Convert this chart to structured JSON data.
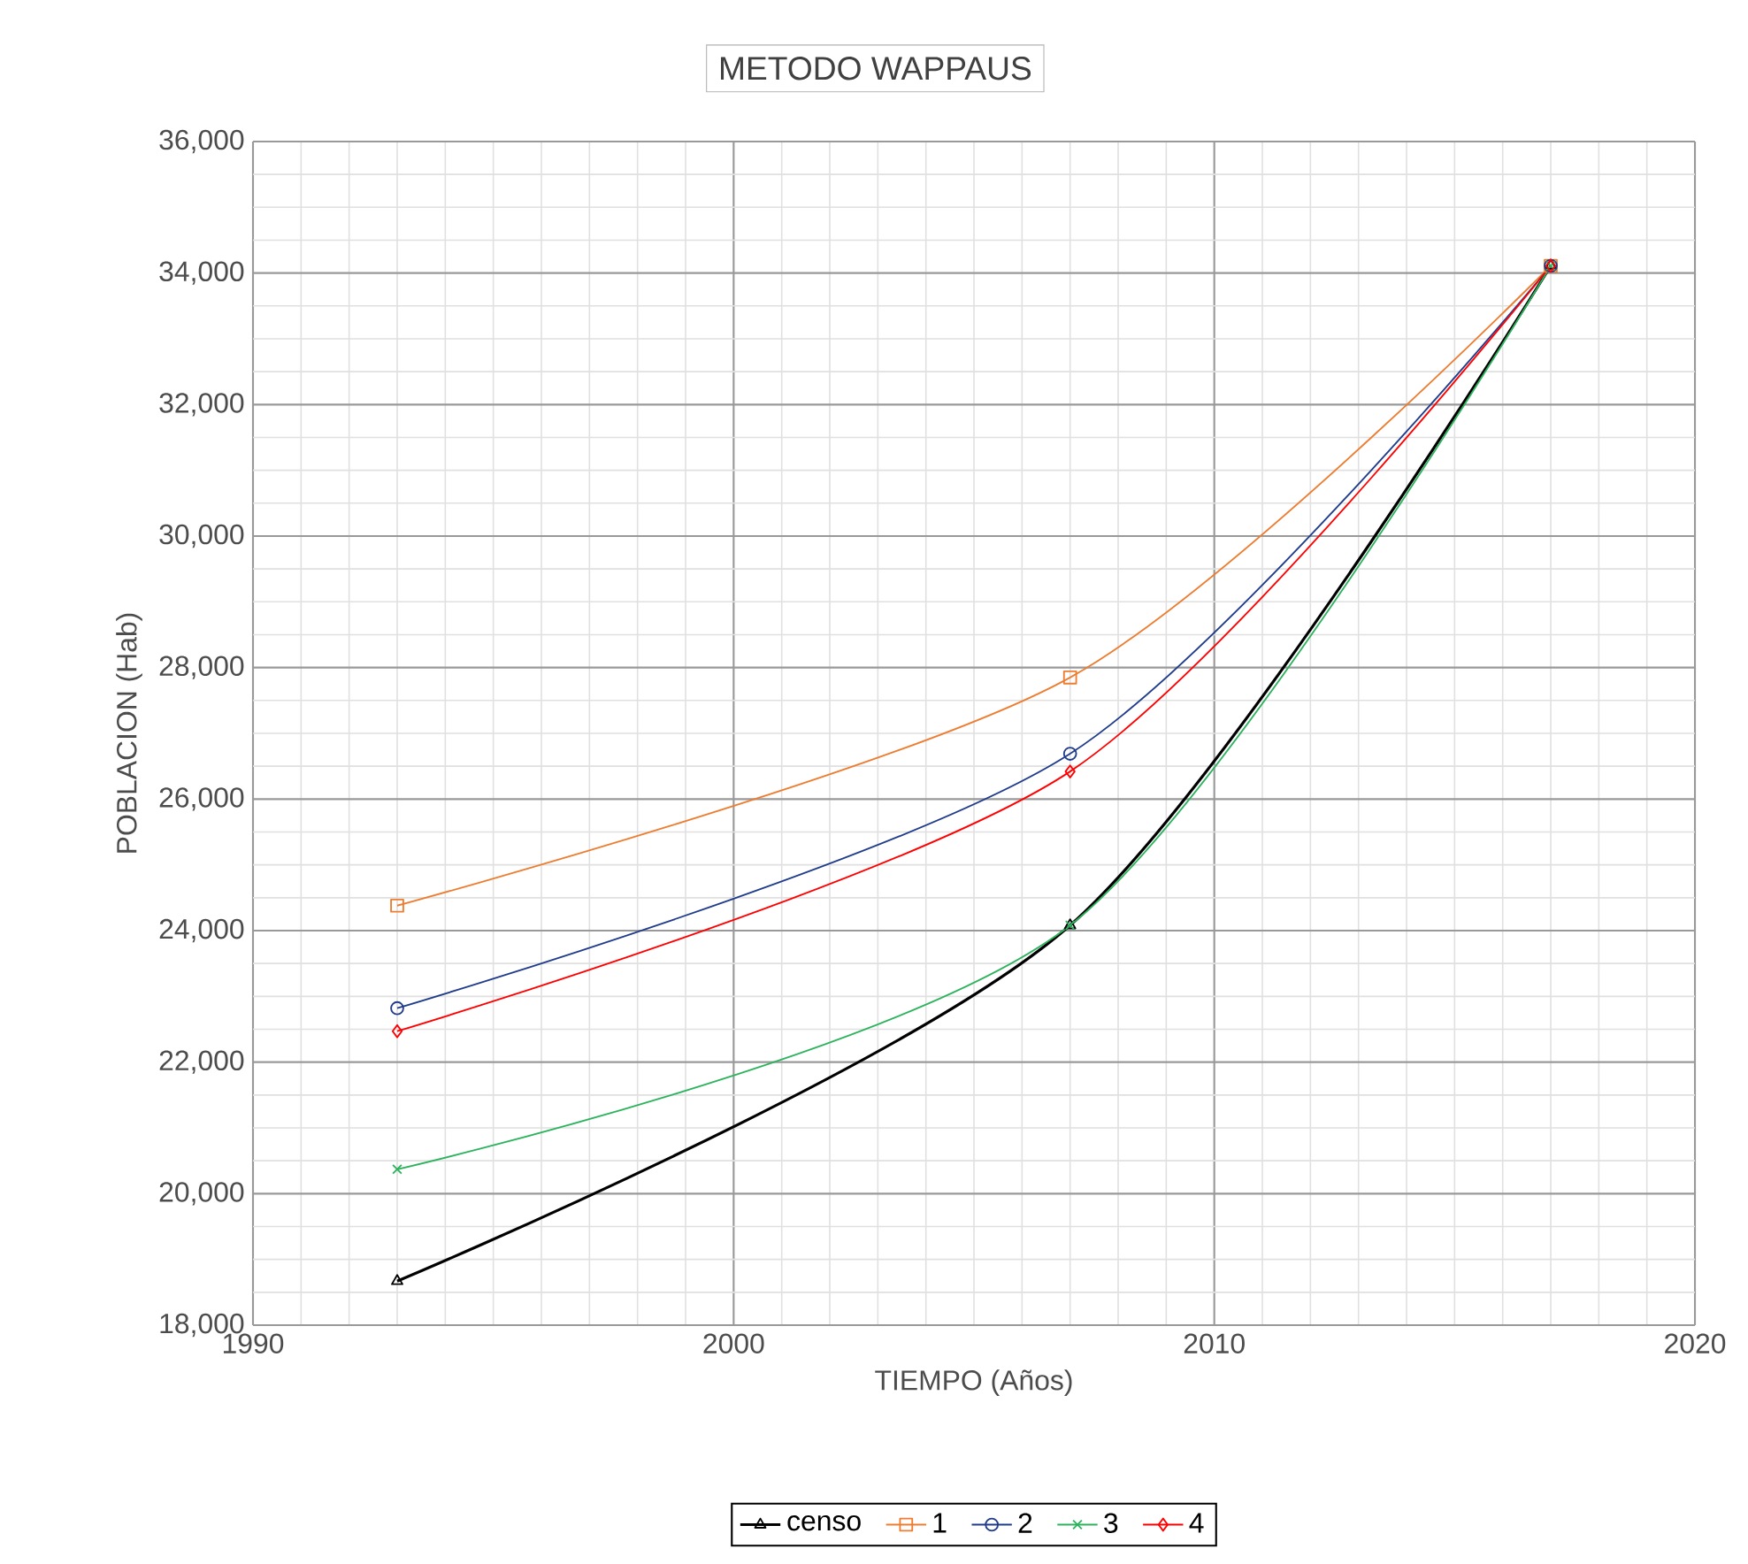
{
  "chart_data": {
    "type": "line",
    "title": "METODO WAPPAUS",
    "xlabel": "TIEMPO (Años)",
    "ylabel": "POBLACION (Hab)",
    "x": [
      1993,
      2007,
      2017
    ],
    "series": [
      {
        "name": "censo",
        "color": "#000000",
        "marker": "triangle",
        "values": [
          18670,
          24080,
          34110
        ]
      },
      {
        "name": "1",
        "color": "#ed7d31",
        "marker": "square",
        "values": [
          24380,
          27850,
          34110
        ]
      },
      {
        "name": "2",
        "color": "#203c8c",
        "marker": "circle",
        "values": [
          22820,
          26690,
          34110
        ]
      },
      {
        "name": "3",
        "color": "#2db35d",
        "marker": "cross",
        "values": [
          20370,
          24080,
          34110
        ]
      },
      {
        "name": "4",
        "color": "#ff0000",
        "marker": "diamond",
        "values": [
          22470,
          26420,
          34110
        ]
      }
    ],
    "xlim": [
      1990,
      2020
    ],
    "xticks": [
      1990,
      2000,
      2010,
      2020
    ],
    "ylim": [
      18000,
      36000
    ],
    "yticks": [
      {
        "value": 18000,
        "label": "18,000"
      },
      {
        "value": 20000,
        "label": "20,000"
      },
      {
        "value": 22000,
        "label": "22,000"
      },
      {
        "value": 24000,
        "label": "24,000"
      },
      {
        "value": 26000,
        "label": "26,000"
      },
      {
        "value": 28000,
        "label": "28,000"
      },
      {
        "value": 30000,
        "label": "30,000"
      },
      {
        "value": 32000,
        "label": "32,000"
      },
      {
        "value": 34000,
        "label": "34,000"
      },
      {
        "value": 36000,
        "label": "36,000"
      }
    ],
    "grid": true,
    "legend": "bottom",
    "line_style": "solid"
  }
}
